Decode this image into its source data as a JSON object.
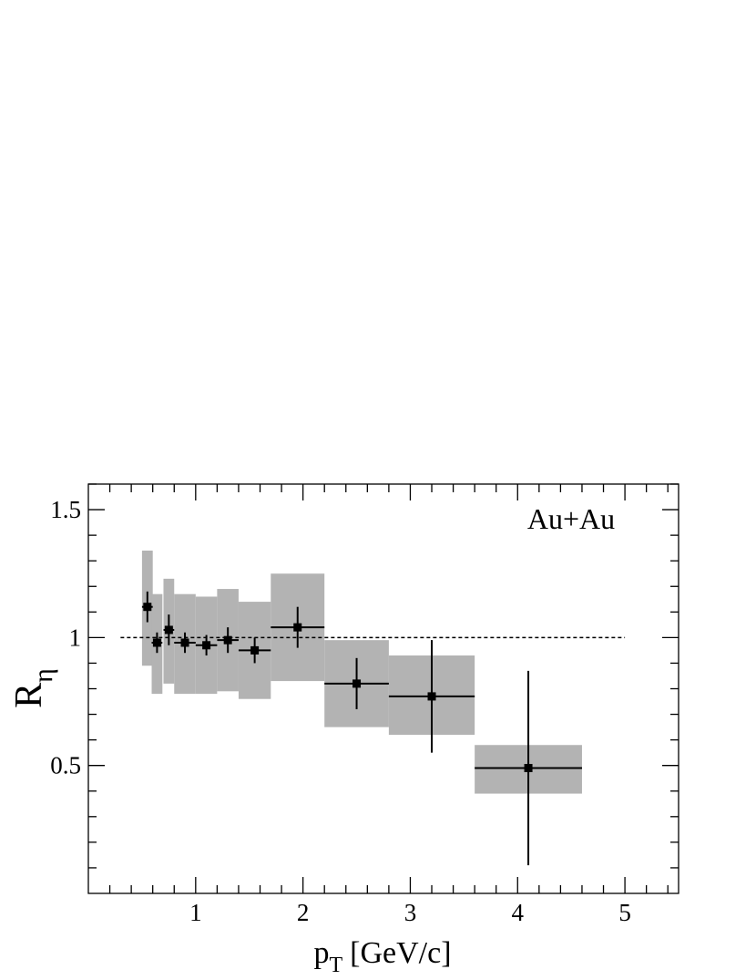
{
  "chart_data": {
    "type": "errorbar",
    "annotation": "Au+Au",
    "xlabel": {
      "main": "p",
      "sub": "T",
      "unit": "[GeV/c]"
    },
    "ylabel": {
      "main": "R",
      "sub": "η"
    },
    "x": [
      0.55,
      0.64,
      0.75,
      0.9,
      1.1,
      1.3,
      1.55,
      1.95,
      2.5,
      3.2,
      4.1
    ],
    "xerr": [
      0.05,
      0.05,
      0.05,
      0.1,
      0.1,
      0.1,
      0.15,
      0.25,
      0.3,
      0.4,
      0.5
    ],
    "values": [
      1.12,
      0.98,
      1.03,
      0.98,
      0.97,
      0.99,
      0.95,
      1.04,
      0.82,
      0.77,
      0.49
    ],
    "yerr": [
      0.06,
      0.04,
      0.06,
      0.04,
      0.04,
      0.05,
      0.05,
      0.08,
      0.1,
      0.22,
      0.38
    ],
    "sys_high": [
      1.34,
      1.17,
      1.23,
      1.17,
      1.16,
      1.19,
      1.14,
      1.25,
      0.99,
      0.93,
      0.58
    ],
    "sys_low": [
      0.89,
      0.78,
      0.82,
      0.78,
      0.78,
      0.79,
      0.76,
      0.83,
      0.65,
      0.62,
      0.39
    ],
    "color": "#000000",
    "sys_color": "#b3b3b3",
    "reference_line": {
      "value": 1,
      "xrange": [
        0.3,
        5
      ]
    },
    "xlim": [
      0,
      5.5
    ],
    "ylim": [
      0,
      1.6
    ],
    "xticks": [
      1,
      2,
      3,
      4,
      5
    ],
    "yticks": [
      0.5,
      1,
      1.5
    ],
    "xminorticks": [
      0.2,
      0.4,
      0.6,
      0.8,
      1.2,
      1.4,
      1.6,
      1.8,
      2.2,
      2.4,
      2.6,
      2.8,
      3.2,
      3.4,
      3.6,
      3.8,
      4.2,
      4.4,
      4.6,
      4.8,
      5.2,
      5.4
    ],
    "yminorticks": [
      0.1,
      0.2,
      0.3,
      0.4,
      0.6,
      0.7,
      0.8,
      0.9,
      1.1,
      1.2,
      1.3,
      1.4,
      1.6
    ]
  }
}
